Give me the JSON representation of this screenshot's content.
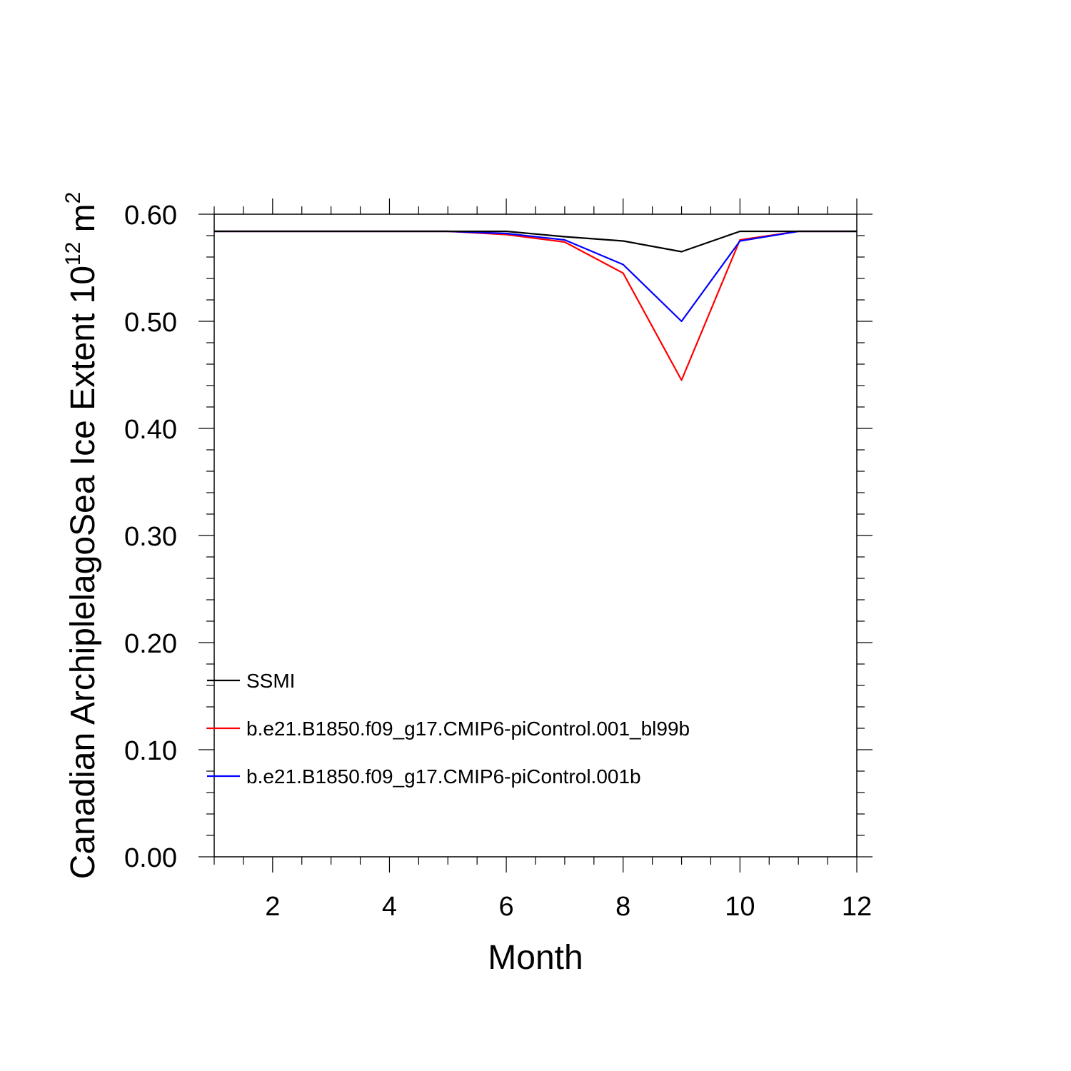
{
  "chart_data": {
    "type": "line",
    "title": "",
    "xlabel": "Month",
    "ylabel": {
      "prefix": "Canadian ArchiplelagoSea Ice Extent 10",
      "superscript1": "12",
      "middle": " m",
      "superscript2": "2"
    },
    "xlim": [
      1,
      12
    ],
    "ylim": [
      0,
      0.6
    ],
    "x_ticks": [
      2,
      4,
      6,
      8,
      10,
      12
    ],
    "x_tick_labels": [
      "2",
      "4",
      "6",
      "8",
      "10",
      "12"
    ],
    "y_ticks": [
      0,
      0.1,
      0.2,
      0.3,
      0.4,
      0.5,
      0.6
    ],
    "y_tick_labels": [
      "0.00",
      "0.10",
      "0.20",
      "0.30",
      "0.40",
      "0.50",
      "0.60"
    ],
    "x": [
      1,
      2,
      3,
      4,
      5,
      6,
      7,
      8,
      9,
      10,
      11,
      12
    ],
    "series": [
      {
        "name": "SSMI",
        "color": "#000000",
        "values": [
          0.584,
          0.584,
          0.584,
          0.584,
          0.584,
          0.584,
          0.579,
          0.575,
          0.565,
          0.584,
          0.584,
          0.584
        ]
      },
      {
        "name": "b.e21.B1850.f09_g17.CMIP6-piControl.001_bl99b",
        "color": "#ff0000",
        "values": [
          0.584,
          0.584,
          0.584,
          0.584,
          0.584,
          0.581,
          0.574,
          0.545,
          0.445,
          0.576,
          0.584,
          0.584
        ]
      },
      {
        "name": "b.e21.B1850.f09_g17.CMIP6-piControl.001b",
        "color": "#0000ff",
        "values": [
          0.584,
          0.584,
          0.584,
          0.584,
          0.584,
          0.582,
          0.576,
          0.553,
          0.5,
          0.575,
          0.584,
          0.584
        ]
      }
    ],
    "legend_position": "lower-left",
    "grid": false
  }
}
